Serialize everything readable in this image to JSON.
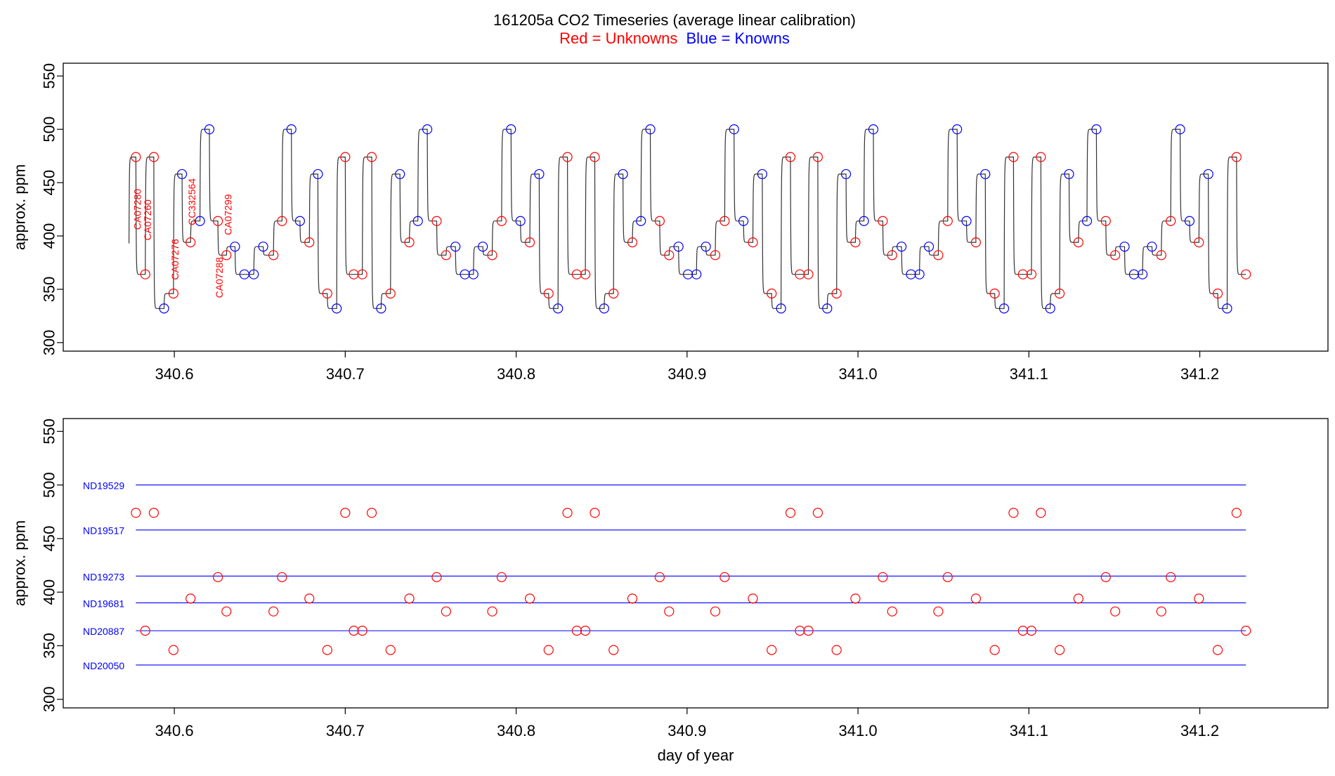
{
  "title": "161205a   CO2 Timeseries (average linear calibration)",
  "legend": {
    "unknowns_text": "Red = Unknowns",
    "knowns_text": "Blue = Knowns",
    "unknowns_color": "#ff0000",
    "knowns_color": "#0000ff"
  },
  "colors": {
    "trace": "#333333",
    "axis": "#000000"
  },
  "chart_data": [
    {
      "type": "line",
      "panel": "top",
      "xlabel": "",
      "ylabel": "approx. ppm",
      "xlim": [
        340.535,
        341.275
      ],
      "ylim": [
        292,
        562
      ],
      "xticks": [
        340.6,
        340.7,
        340.8,
        340.9,
        341.0,
        341.1,
        341.2
      ],
      "xtick_labels": [
        "340.6",
        "340.7",
        "340.8",
        "340.9",
        "341.0",
        "341.1",
        "341.2"
      ],
      "yticks": [
        300,
        350,
        400,
        450,
        500,
        550
      ],
      "ytick_labels": [
        "300",
        "350",
        "400",
        "450",
        "500",
        "550"
      ],
      "trace_start": [
        340.5735,
        393
      ],
      "sample_labels": [
        {
          "text": "CA07280",
          "x": 340.5775,
          "y": 425
        },
        {
          "text": "CA07260",
          "x": 340.5835,
          "y": 415
        },
        {
          "text": "CA07276",
          "x": 340.5995,
          "y": 378
        },
        {
          "text": "CC332564",
          "x": 340.6095,
          "y": 432
        },
        {
          "text": "CA07288",
          "x": 340.6255,
          "y": 361
        },
        {
          "text": "CA07299",
          "x": 340.6305,
          "y": 420
        }
      ],
      "unknowns": {
        "x": [
          340.5775,
          340.583,
          340.588,
          340.5995,
          340.6095,
          340.6255,
          340.6305,
          340.658,
          340.663,
          340.679,
          340.6895,
          340.7,
          340.705,
          340.71,
          340.7155,
          340.7265,
          340.7375,
          340.7535,
          340.759,
          340.786,
          340.7915,
          340.808,
          340.819,
          340.83,
          340.8355,
          340.8405,
          340.846,
          340.857,
          340.868,
          340.884,
          340.8895,
          340.9165,
          340.922,
          340.9385,
          340.9495,
          340.9605,
          340.966,
          340.971,
          340.9765,
          340.9875,
          340.9985,
          341.0145,
          341.02,
          341.047,
          341.0525,
          341.069,
          341.08,
          341.091,
          341.0965,
          341.1015,
          341.107,
          341.118,
          341.129,
          341.145,
          341.1505,
          341.1775,
          341.183,
          341.1995,
          341.2105,
          341.2215,
          341.227
        ],
        "y": [
          474,
          364,
          474,
          346,
          394,
          414,
          382,
          382,
          414,
          394,
          346,
          474,
          364,
          364,
          474,
          346,
          394,
          414,
          382,
          382,
          414,
          394,
          346,
          474,
          364,
          364,
          474,
          346,
          394,
          414,
          382,
          382,
          414,
          394,
          346,
          474,
          364,
          364,
          474,
          346,
          394,
          414,
          382,
          382,
          414,
          394,
          346,
          474,
          364,
          364,
          474,
          346,
          394,
          414,
          382,
          382,
          414,
          394,
          346,
          474,
          364
        ]
      },
      "knowns": {
        "x": [
          340.594,
          340.6045,
          340.615,
          340.6205,
          340.6355,
          340.641,
          340.6465,
          340.652,
          340.6685,
          340.6735,
          340.684,
          340.695,
          340.721,
          340.732,
          340.7425,
          340.748,
          340.7645,
          340.77,
          340.775,
          340.7805,
          340.797,
          340.8025,
          340.8135,
          340.8245,
          340.8515,
          340.8625,
          340.873,
          340.8785,
          340.895,
          340.9005,
          340.9055,
          340.911,
          340.9275,
          340.933,
          340.944,
          340.955,
          340.982,
          340.993,
          341.0035,
          341.009,
          341.0255,
          341.031,
          341.036,
          341.0415,
          341.058,
          341.0635,
          341.0745,
          341.0855,
          341.1125,
          341.1235,
          341.134,
          341.1395,
          341.156,
          341.1615,
          341.1665,
          341.172,
          341.1885,
          341.194,
          341.205,
          341.216
        ],
        "y": [
          332,
          458,
          414,
          500,
          390,
          364,
          364,
          390,
          500,
          414,
          458,
          332,
          332,
          458,
          414,
          500,
          390,
          364,
          364,
          390,
          500,
          414,
          458,
          332,
          332,
          458,
          414,
          500,
          390,
          364,
          364,
          390,
          500,
          414,
          458,
          332,
          332,
          458,
          414,
          500,
          390,
          364,
          364,
          390,
          500,
          414,
          458,
          332,
          332,
          458,
          414,
          500,
          390,
          364,
          364,
          390,
          500,
          414,
          458,
          332
        ]
      }
    },
    {
      "type": "scatter",
      "panel": "bottom",
      "xlabel": "day of year",
      "ylabel": "approx. ppm",
      "xlim": [
        340.535,
        341.275
      ],
      "ylim": [
        292,
        562
      ],
      "xticks": [
        340.6,
        340.7,
        340.8,
        340.9,
        341.0,
        341.1,
        341.2
      ],
      "xtick_labels": [
        "340.6",
        "340.7",
        "340.8",
        "340.9",
        "341.0",
        "341.1",
        "341.2"
      ],
      "yticks": [
        300,
        350,
        400,
        450,
        500,
        550
      ],
      "ytick_labels": [
        "300",
        "350",
        "400",
        "450",
        "500",
        "550"
      ],
      "reference_lines": [
        {
          "name": "ND19529",
          "value": 500
        },
        {
          "name": "ND19517",
          "value": 458
        },
        {
          "name": "ND19273",
          "value": 415
        },
        {
          "name": "ND19681",
          "value": 390
        },
        {
          "name": "ND20887",
          "value": 364
        },
        {
          "name": "ND20050",
          "value": 332
        }
      ],
      "reference_x_range": [
        340.5775,
        341.227
      ],
      "unknowns": "same as top panel unknowns"
    }
  ]
}
